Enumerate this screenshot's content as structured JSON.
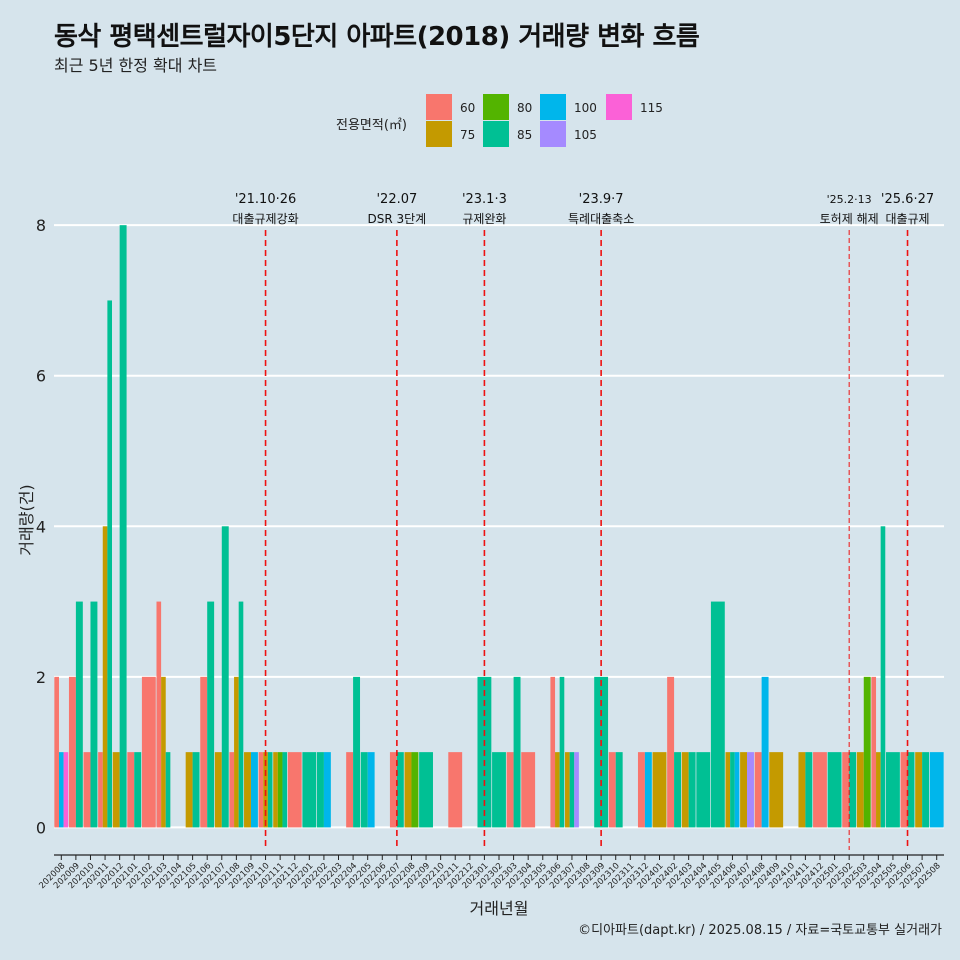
{
  "chart_data": {
    "type": "bar",
    "title": "동삭 평택센트럴자이5단지 아파트(2018) 거래량 변화 흐름",
    "subtitle": "최근 5년 한정 확대 차트",
    "xlabel": "거래년월",
    "ylabel": "거래량(건)",
    "ylim": [
      -0.3,
      8.6
    ],
    "yticks": [
      0,
      2,
      4,
      6,
      8
    ],
    "grid": true,
    "legend_title": "전용면적(㎡)",
    "legend_position": "top",
    "caption": "©디아파트(dapt.kr) / 2025.08.15 / 자료=국토교통부 실거래가",
    "colors": {
      "60": "#f8766d",
      "75": "#c49a00",
      "80": "#53b400",
      "85": "#00c094",
      "100": "#00b6eb",
      "105": "#a58aff",
      "115": "#fb61d7"
    },
    "legend_entries": [
      "60",
      "75",
      "80",
      "85",
      "100",
      "105",
      "115"
    ],
    "categories": [
      "202008",
      "202009",
      "202010",
      "202011",
      "202012",
      "202101",
      "202102",
      "202103",
      "202104",
      "202105",
      "202106",
      "202107",
      "202108",
      "202109",
      "202110",
      "202111",
      "202112",
      "202201",
      "202202",
      "202203",
      "202204",
      "202205",
      "202206",
      "202207",
      "202208",
      "202209",
      "202210",
      "202211",
      "202212",
      "202301",
      "202302",
      "202303",
      "202304",
      "202305",
      "202306",
      "202307",
      "202308",
      "202309",
      "202310",
      "202311",
      "202312",
      "202401",
      "202402",
      "202403",
      "202404",
      "202405",
      "202406",
      "202407",
      "202408",
      "202409",
      "202410",
      "202411",
      "202412",
      "202501",
      "202502",
      "202503",
      "202504",
      "202505",
      "202506",
      "202507",
      "202508"
    ],
    "bars": [
      {
        "month": "202008",
        "values": {
          "60": 2,
          "100": 1,
          "115": 1
        }
      },
      {
        "month": "202009",
        "values": {
          "60": 2,
          "85": 3
        }
      },
      {
        "month": "202010",
        "values": {
          "60": 1,
          "85": 3
        }
      },
      {
        "month": "202011",
        "values": {
          "60": 1,
          "75": 4,
          "85": 7
        }
      },
      {
        "month": "202012",
        "values": {
          "75": 1,
          "85": 8
        }
      },
      {
        "month": "202101",
        "values": {
          "60": 1,
          "85": 1
        }
      },
      {
        "month": "202102",
        "values": {
          "60": 2
        }
      },
      {
        "month": "202103",
        "values": {
          "60": 3,
          "75": 2,
          "85": 1
        }
      },
      {
        "month": "202104",
        "values": {}
      },
      {
        "month": "202105",
        "values": {
          "75": 1,
          "85": 1
        }
      },
      {
        "month": "202106",
        "values": {
          "60": 2,
          "85": 3
        }
      },
      {
        "month": "202107",
        "values": {
          "75": 1,
          "85": 4
        }
      },
      {
        "month": "202108",
        "values": {
          "60": 1,
          "75": 2,
          "85": 3
        }
      },
      {
        "month": "202109",
        "values": {
          "75": 1,
          "100": 1
        }
      },
      {
        "month": "202110",
        "values": {
          "60": 1,
          "75": 1,
          "85": 1
        }
      },
      {
        "month": "202111",
        "values": {
          "75": 1,
          "80": 1,
          "85": 1
        }
      },
      {
        "month": "202112",
        "values": {
          "60": 1
        }
      },
      {
        "month": "202201",
        "values": {
          "85": 1
        }
      },
      {
        "month": "202202",
        "values": {
          "85": 1,
          "100": 1
        }
      },
      {
        "month": "202203",
        "values": {}
      },
      {
        "month": "202204",
        "values": {
          "60": 1,
          "85": 2
        }
      },
      {
        "month": "202205",
        "values": {
          "85": 1,
          "100": 1
        }
      },
      {
        "month": "202206",
        "values": {}
      },
      {
        "month": "202207",
        "values": {
          "85": 1,
          "60": 1
        }
      },
      {
        "month": "202208",
        "values": {
          "75": 1,
          "80": 1
        }
      },
      {
        "month": "202209",
        "values": {
          "85": 1
        }
      },
      {
        "month": "202210",
        "values": {}
      },
      {
        "month": "202211",
        "values": {
          "60": 1
        }
      },
      {
        "month": "202212",
        "values": {}
      },
      {
        "month": "202301",
        "values": {
          "85": 2
        }
      },
      {
        "month": "202302",
        "values": {
          "85": 1
        }
      },
      {
        "month": "202303",
        "values": {
          "60": 1,
          "85": 2
        }
      },
      {
        "month": "202304",
        "values": {
          "60": 1
        }
      },
      {
        "month": "202305",
        "values": {}
      },
      {
        "month": "202306",
        "values": {
          "60": 2,
          "75": 1,
          "85": 2
        }
      },
      {
        "month": "202307",
        "values": {
          "75": 1,
          "85": 1,
          "105": 1
        }
      },
      {
        "month": "202308",
        "values": {}
      },
      {
        "month": "202309",
        "values": {
          "85": 2
        }
      },
      {
        "month": "202310",
        "values": {
          "60": 1,
          "85": 1
        }
      },
      {
        "month": "202311",
        "values": {}
      },
      {
        "month": "202312",
        "values": {
          "60": 1,
          "100": 1
        }
      },
      {
        "month": "202401",
        "values": {
          "75": 1
        }
      },
      {
        "month": "202402",
        "values": {
          "60": 2,
          "85": 1
        }
      },
      {
        "month": "202403",
        "values": {
          "75": 1,
          "85": 1
        }
      },
      {
        "month": "202404",
        "values": {
          "85": 1
        }
      },
      {
        "month": "202405",
        "values": {
          "85": 3
        }
      },
      {
        "month": "202406",
        "values": {
          "75": 1,
          "85": 1,
          "100": 1
        }
      },
      {
        "month": "202407",
        "values": {
          "75": 1,
          "105": 1
        }
      },
      {
        "month": "202408",
        "values": {
          "60": 1,
          "100": 2
        }
      },
      {
        "month": "202409",
        "values": {
          "75": 1
        }
      },
      {
        "month": "202410",
        "values": {}
      },
      {
        "month": "202411",
        "values": {
          "75": 1,
          "85": 1
        }
      },
      {
        "month": "202412",
        "values": {
          "60": 1
        }
      },
      {
        "month": "202501",
        "values": {
          "85": 1
        }
      },
      {
        "month": "202502",
        "values": {
          "85": 1,
          "60": 1
        }
      },
      {
        "month": "202503",
        "values": {
          "75": 1,
          "80": 2
        }
      },
      {
        "month": "202504",
        "values": {
          "60": 2,
          "75": 1,
          "85": 4
        }
      },
      {
        "month": "202505",
        "values": {
          "85": 1
        }
      },
      {
        "month": "202506",
        "values": {
          "85": 1,
          "60": 1
        }
      },
      {
        "month": "202507",
        "values": {
          "75": 1,
          "85": 1
        }
      },
      {
        "month": "202508",
        "values": {
          "100": 1
        }
      }
    ],
    "annotations": [
      {
        "month": "202110",
        "line1": "'21.10·26",
        "line2": "대출규제강화",
        "style": "dashed"
      },
      {
        "month": "202207",
        "line1": "'22.07",
        "line2": "DSR 3단계",
        "style": "dashed"
      },
      {
        "month": "202301",
        "line1": "'23.1·3",
        "line2": "규제완화",
        "style": "dashed"
      },
      {
        "month": "202309",
        "line1": "'23.9·7",
        "line2": "특례대출축소",
        "style": "dashed"
      },
      {
        "month": "202502",
        "line1": "'25.2·13",
        "line2": "토허제 해제",
        "style": "thin"
      },
      {
        "month": "202506",
        "line1": "'25.6·27",
        "line2": "대출규제",
        "style": "dashed"
      }
    ]
  }
}
